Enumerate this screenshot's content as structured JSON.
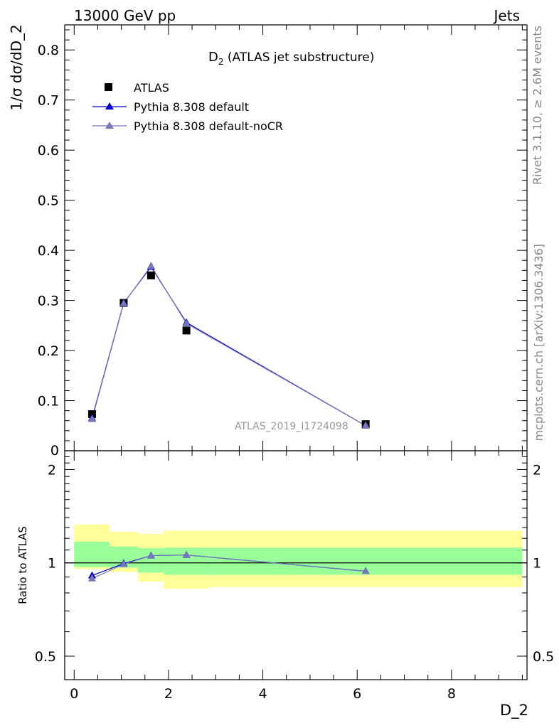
{
  "header": {
    "left": "13000 GeV pp",
    "right": "Jets"
  },
  "side_labels": {
    "rivet": "Rivet 3.1.10, ≥ 2.6M events",
    "mcplots": "mcplots.cern.ch [arXiv:1306.3436]"
  },
  "chart_data": [
    {
      "type": "scatter",
      "title_main": "D",
      "title_sub": "2",
      "title_rest": " (ATLAS jet substructure)",
      "ylabel": "1/σ dσ/dD_2",
      "analysis_tag": "ATLAS_2019_I1724098",
      "xlim": [
        -0.2,
        9.6
      ],
      "ylim": [
        0,
        0.85
      ],
      "yticks": [
        0.1,
        0.2,
        0.3,
        0.4,
        0.5,
        0.6,
        0.7,
        0.8
      ],
      "ytick_labels": [
        "0.1",
        "0.2",
        "0.3",
        "0.4",
        "0.5",
        "0.6",
        "0.7",
        "0.8"
      ],
      "bottom_cut_label": "0",
      "legend_position": "top-left",
      "legend": [
        {
          "name": "ATLAS",
          "marker": "square",
          "color": "#000000"
        },
        {
          "name": "Pythia 8.308 default",
          "marker": "triangle",
          "color": "#0000cc"
        },
        {
          "name": "Pythia 8.308 default-noCR",
          "marker": "triangle",
          "color": "#7777bb"
        }
      ],
      "series": [
        {
          "name": "ATLAS",
          "color": "#000000",
          "x": [
            0.38,
            1.05,
            1.63,
            2.38,
            6.18
          ],
          "y": [
            0.073,
            0.295,
            0.35,
            0.24,
            0.053
          ]
        },
        {
          "name": "Pythia 8.308 default",
          "color": "#0000cc",
          "x": [
            0.38,
            1.05,
            1.63,
            2.38,
            6.18
          ],
          "y": [
            0.065,
            0.295,
            0.367,
            0.256,
            0.05
          ]
        },
        {
          "name": "Pythia 8.308 default-noCR",
          "color": "#7777bb",
          "x": [
            0.38,
            1.05,
            1.63,
            2.38,
            6.18
          ],
          "y": [
            0.063,
            0.294,
            0.369,
            0.254,
            0.05
          ]
        }
      ]
    },
    {
      "type": "line",
      "ylabel": "Ratio to ATLAS",
      "xlabel": "D_2",
      "scale": "log",
      "xlim": [
        -0.2,
        9.6
      ],
      "ylim": [
        0.42,
        2.3
      ],
      "xticks": [
        0,
        2,
        4,
        6,
        8
      ],
      "xtick_labels": [
        "0",
        "2",
        "4",
        "6",
        "8"
      ],
      "yticks": [
        0.5,
        1,
        2
      ],
      "ytick_labels": [
        "0.5",
        "1",
        "2"
      ],
      "bands": [
        {
          "name": "outer",
          "color": "#ffff99",
          "bins": [
            {
              "x0": 0.0,
              "x1": 0.75,
              "lo": 0.955,
              "hi": 1.33
            },
            {
              "x0": 0.75,
              "x1": 1.35,
              "lo": 0.935,
              "hi": 1.26
            },
            {
              "x0": 1.35,
              "x1": 1.9,
              "lo": 0.87,
              "hi": 1.24
            },
            {
              "x0": 1.9,
              "x1": 2.85,
              "lo": 0.825,
              "hi": 1.27
            },
            {
              "x0": 2.85,
              "x1": 9.5,
              "lo": 0.835,
              "hi": 1.27
            }
          ]
        },
        {
          "name": "inner",
          "color": "#99ff99",
          "bins": [
            {
              "x0": 0.0,
              "x1": 0.75,
              "lo": 0.97,
              "hi": 1.17
            },
            {
              "x0": 0.75,
              "x1": 1.35,
              "lo": 0.965,
              "hi": 1.13
            },
            {
              "x0": 1.35,
              "x1": 1.9,
              "lo": 0.93,
              "hi": 1.115
            },
            {
              "x0": 1.9,
              "x1": 2.85,
              "lo": 0.915,
              "hi": 1.12
            },
            {
              "x0": 2.85,
              "x1": 9.5,
              "lo": 0.915,
              "hi": 1.12
            }
          ]
        }
      ],
      "series": [
        {
          "name": "Pythia 8.308 default",
          "color": "#0000cc",
          "x": [
            0.38,
            1.05,
            1.63,
            2.38,
            6.18
          ],
          "y": [
            0.91,
            0.995,
            1.055,
            1.06,
            0.94
          ]
        },
        {
          "name": "Pythia 8.308 default-noCR",
          "color": "#7777bb",
          "x": [
            0.38,
            1.05,
            1.63,
            2.38,
            6.18
          ],
          "y": [
            0.89,
            0.99,
            1.055,
            1.06,
            0.94
          ]
        }
      ]
    }
  ]
}
